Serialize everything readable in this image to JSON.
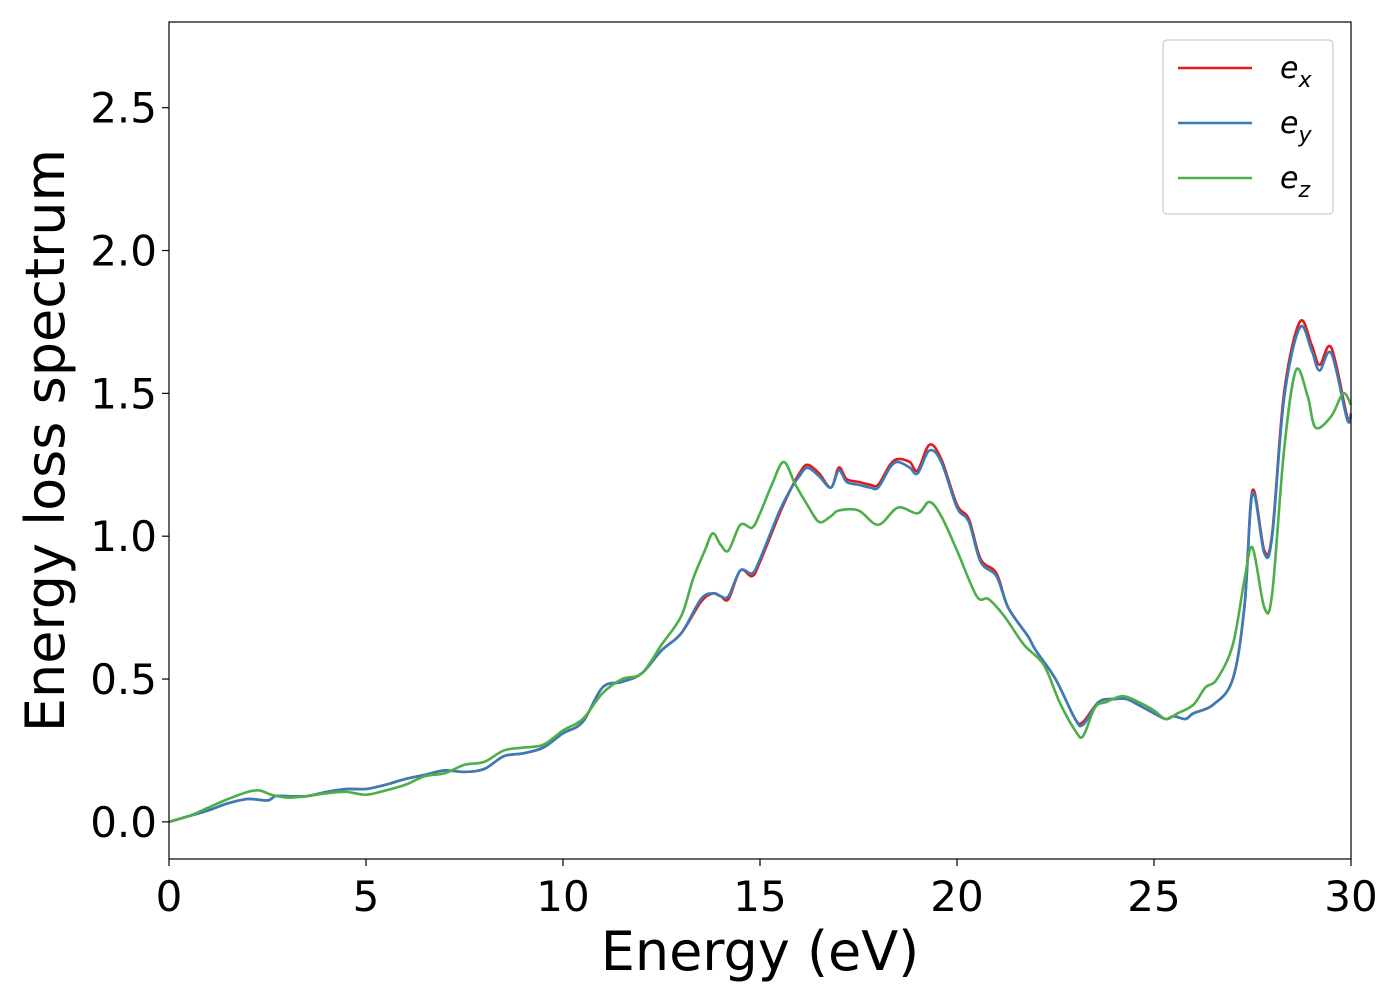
{
  "chart_data": {
    "type": "line",
    "title": "",
    "xlabel": "Energy (eV)",
    "ylabel": "Energy loss spectrum",
    "xlim": [
      0,
      30
    ],
    "ylim": [
      -0.13,
      2.8
    ],
    "xticks": [
      0,
      5,
      10,
      15,
      20,
      25,
      30
    ],
    "xtick_labels": [
      "0",
      "5",
      "10",
      "15",
      "20",
      "25",
      "30"
    ],
    "yticks": [
      0.0,
      0.5,
      1.0,
      1.5,
      2.0,
      2.5
    ],
    "ytick_labels": [
      "0.0",
      "0.5",
      "1.0",
      "1.5",
      "2.0",
      "2.5"
    ],
    "grid": false,
    "legend_position": "top-right",
    "series": [
      {
        "name": "e",
        "subscript": "x",
        "color": "#e41a1c",
        "points": [
          [
            0,
            0.0
          ],
          [
            0.5,
            0.02
          ],
          [
            1.0,
            0.04
          ],
          [
            1.5,
            0.065
          ],
          [
            2.0,
            0.08
          ],
          [
            2.5,
            0.075
          ],
          [
            2.7,
            0.09
          ],
          [
            3.0,
            0.09
          ],
          [
            3.5,
            0.09
          ],
          [
            4.0,
            0.105
          ],
          [
            4.5,
            0.115
          ],
          [
            5.0,
            0.115
          ],
          [
            5.5,
            0.13
          ],
          [
            6.0,
            0.15
          ],
          [
            6.5,
            0.165
          ],
          [
            7.0,
            0.18
          ],
          [
            7.5,
            0.175
          ],
          [
            8.0,
            0.185
          ],
          [
            8.5,
            0.23
          ],
          [
            9.0,
            0.24
          ],
          [
            9.5,
            0.26
          ],
          [
            10.0,
            0.31
          ],
          [
            10.5,
            0.35
          ],
          [
            11.0,
            0.47
          ],
          [
            11.5,
            0.49
          ],
          [
            12.0,
            0.52
          ],
          [
            12.5,
            0.6
          ],
          [
            13.0,
            0.66
          ],
          [
            13.5,
            0.77
          ],
          [
            13.8,
            0.8
          ],
          [
            14.0,
            0.79
          ],
          [
            14.2,
            0.78
          ],
          [
            14.5,
            0.88
          ],
          [
            14.8,
            0.86
          ],
          [
            15.0,
            0.91
          ],
          [
            15.5,
            1.08
          ],
          [
            15.8,
            1.17
          ],
          [
            16.0,
            1.22
          ],
          [
            16.2,
            1.25
          ],
          [
            16.5,
            1.22
          ],
          [
            16.8,
            1.17
          ],
          [
            17.0,
            1.24
          ],
          [
            17.2,
            1.2
          ],
          [
            17.5,
            1.19
          ],
          [
            17.8,
            1.18
          ],
          [
            18.0,
            1.18
          ],
          [
            18.3,
            1.25
          ],
          [
            18.5,
            1.27
          ],
          [
            18.8,
            1.26
          ],
          [
            19.0,
            1.23
          ],
          [
            19.3,
            1.32
          ],
          [
            19.6,
            1.27
          ],
          [
            20.0,
            1.11
          ],
          [
            20.3,
            1.06
          ],
          [
            20.6,
            0.92
          ],
          [
            21.0,
            0.87
          ],
          [
            21.3,
            0.75
          ],
          [
            21.8,
            0.65
          ],
          [
            22.0,
            0.6
          ],
          [
            22.5,
            0.5
          ],
          [
            23.0,
            0.36
          ],
          [
            23.2,
            0.35
          ],
          [
            23.6,
            0.42
          ],
          [
            24.0,
            0.43
          ],
          [
            24.3,
            0.43
          ],
          [
            24.6,
            0.41
          ],
          [
            25.0,
            0.38
          ],
          [
            25.3,
            0.36
          ],
          [
            25.5,
            0.37
          ],
          [
            25.8,
            0.36
          ],
          [
            26.0,
            0.38
          ],
          [
            26.5,
            0.41
          ],
          [
            27.0,
            0.5
          ],
          [
            27.3,
            0.76
          ],
          [
            27.5,
            1.16
          ],
          [
            27.8,
            0.95
          ],
          [
            28.0,
            1.01
          ],
          [
            28.3,
            1.5
          ],
          [
            28.7,
            1.75
          ],
          [
            29.0,
            1.67
          ],
          [
            29.2,
            1.6
          ],
          [
            29.5,
            1.66
          ],
          [
            29.9,
            1.42
          ],
          [
            30.0,
            1.42
          ]
        ]
      },
      {
        "name": "e",
        "subscript": "y",
        "color": "#377eb8",
        "points": [
          [
            0,
            0.0
          ],
          [
            0.5,
            0.02
          ],
          [
            1.0,
            0.04
          ],
          [
            1.5,
            0.065
          ],
          [
            2.0,
            0.08
          ],
          [
            2.5,
            0.075
          ],
          [
            2.7,
            0.09
          ],
          [
            3.0,
            0.09
          ],
          [
            3.5,
            0.09
          ],
          [
            4.0,
            0.105
          ],
          [
            4.5,
            0.115
          ],
          [
            5.0,
            0.115
          ],
          [
            5.5,
            0.13
          ],
          [
            6.0,
            0.15
          ],
          [
            6.5,
            0.165
          ],
          [
            7.0,
            0.18
          ],
          [
            7.5,
            0.175
          ],
          [
            8.0,
            0.185
          ],
          [
            8.5,
            0.23
          ],
          [
            9.0,
            0.24
          ],
          [
            9.5,
            0.26
          ],
          [
            10.0,
            0.31
          ],
          [
            10.5,
            0.35
          ],
          [
            11.0,
            0.47
          ],
          [
            11.5,
            0.49
          ],
          [
            12.0,
            0.52
          ],
          [
            12.5,
            0.6
          ],
          [
            13.0,
            0.66
          ],
          [
            13.5,
            0.78
          ],
          [
            13.8,
            0.8
          ],
          [
            14.0,
            0.79
          ],
          [
            14.2,
            0.79
          ],
          [
            14.5,
            0.88
          ],
          [
            14.8,
            0.87
          ],
          [
            15.0,
            0.92
          ],
          [
            15.5,
            1.09
          ],
          [
            15.8,
            1.17
          ],
          [
            16.0,
            1.21
          ],
          [
            16.2,
            1.24
          ],
          [
            16.5,
            1.21
          ],
          [
            16.8,
            1.17
          ],
          [
            17.0,
            1.23
          ],
          [
            17.2,
            1.19
          ],
          [
            17.5,
            1.18
          ],
          [
            17.8,
            1.17
          ],
          [
            18.0,
            1.17
          ],
          [
            18.3,
            1.24
          ],
          [
            18.5,
            1.26
          ],
          [
            18.8,
            1.24
          ],
          [
            19.0,
            1.22
          ],
          [
            19.3,
            1.3
          ],
          [
            19.6,
            1.26
          ],
          [
            20.0,
            1.1
          ],
          [
            20.3,
            1.05
          ],
          [
            20.6,
            0.91
          ],
          [
            21.0,
            0.86
          ],
          [
            21.3,
            0.75
          ],
          [
            21.8,
            0.65
          ],
          [
            22.0,
            0.6
          ],
          [
            22.5,
            0.5
          ],
          [
            23.0,
            0.36
          ],
          [
            23.2,
            0.34
          ],
          [
            23.6,
            0.42
          ],
          [
            24.0,
            0.43
          ],
          [
            24.3,
            0.43
          ],
          [
            24.6,
            0.41
          ],
          [
            25.0,
            0.38
          ],
          [
            25.3,
            0.36
          ],
          [
            25.5,
            0.37
          ],
          [
            25.8,
            0.36
          ],
          [
            26.0,
            0.38
          ],
          [
            26.5,
            0.41
          ],
          [
            27.0,
            0.5
          ],
          [
            27.3,
            0.76
          ],
          [
            27.5,
            1.15
          ],
          [
            27.8,
            0.94
          ],
          [
            28.0,
            1.0
          ],
          [
            28.3,
            1.48
          ],
          [
            28.7,
            1.73
          ],
          [
            29.0,
            1.65
          ],
          [
            29.2,
            1.58
          ],
          [
            29.5,
            1.64
          ],
          [
            29.9,
            1.41
          ],
          [
            30.0,
            1.43
          ]
        ]
      },
      {
        "name": "e",
        "subscript": "z",
        "color": "#4daf4a",
        "points": [
          [
            0,
            0.0
          ],
          [
            0.5,
            0.02
          ],
          [
            1.0,
            0.05
          ],
          [
            1.5,
            0.08
          ],
          [
            2.0,
            0.105
          ],
          [
            2.3,
            0.11
          ],
          [
            2.6,
            0.095
          ],
          [
            3.0,
            0.085
          ],
          [
            3.5,
            0.09
          ],
          [
            4.0,
            0.1
          ],
          [
            4.5,
            0.105
          ],
          [
            5.0,
            0.095
          ],
          [
            5.5,
            0.11
          ],
          [
            6.0,
            0.13
          ],
          [
            6.5,
            0.16
          ],
          [
            7.0,
            0.17
          ],
          [
            7.5,
            0.2
          ],
          [
            8.0,
            0.21
          ],
          [
            8.5,
            0.25
          ],
          [
            9.0,
            0.26
          ],
          [
            9.5,
            0.27
          ],
          [
            10.0,
            0.32
          ],
          [
            10.5,
            0.36
          ],
          [
            11.0,
            0.45
          ],
          [
            11.5,
            0.5
          ],
          [
            12.0,
            0.52
          ],
          [
            12.5,
            0.62
          ],
          [
            13.0,
            0.72
          ],
          [
            13.3,
            0.85
          ],
          [
            13.6,
            0.95
          ],
          [
            13.8,
            1.01
          ],
          [
            14.0,
            0.97
          ],
          [
            14.2,
            0.95
          ],
          [
            14.5,
            1.04
          ],
          [
            14.8,
            1.03
          ],
          [
            15.0,
            1.08
          ],
          [
            15.3,
            1.18
          ],
          [
            15.6,
            1.26
          ],
          [
            15.9,
            1.18
          ],
          [
            16.2,
            1.11
          ],
          [
            16.5,
            1.05
          ],
          [
            16.8,
            1.07
          ],
          [
            17.0,
            1.09
          ],
          [
            17.5,
            1.09
          ],
          [
            18.0,
            1.04
          ],
          [
            18.5,
            1.1
          ],
          [
            19.0,
            1.08
          ],
          [
            19.3,
            1.12
          ],
          [
            19.6,
            1.07
          ],
          [
            20.0,
            0.95
          ],
          [
            20.5,
            0.79
          ],
          [
            20.8,
            0.78
          ],
          [
            21.2,
            0.72
          ],
          [
            21.7,
            0.62
          ],
          [
            22.2,
            0.55
          ],
          [
            22.6,
            0.42
          ],
          [
            23.0,
            0.32
          ],
          [
            23.2,
            0.3
          ],
          [
            23.5,
            0.4
          ],
          [
            23.8,
            0.42
          ],
          [
            24.2,
            0.44
          ],
          [
            24.6,
            0.42
          ],
          [
            25.0,
            0.39
          ],
          [
            25.3,
            0.36
          ],
          [
            25.6,
            0.38
          ],
          [
            26.0,
            0.41
          ],
          [
            26.3,
            0.47
          ],
          [
            26.6,
            0.5
          ],
          [
            27.0,
            0.62
          ],
          [
            27.3,
            0.85
          ],
          [
            27.5,
            0.96
          ],
          [
            27.8,
            0.75
          ],
          [
            28.0,
            0.8
          ],
          [
            28.3,
            1.3
          ],
          [
            28.6,
            1.58
          ],
          [
            28.9,
            1.49
          ],
          [
            29.1,
            1.38
          ],
          [
            29.5,
            1.42
          ],
          [
            29.8,
            1.5
          ],
          [
            30.0,
            1.46
          ]
        ]
      }
    ]
  }
}
